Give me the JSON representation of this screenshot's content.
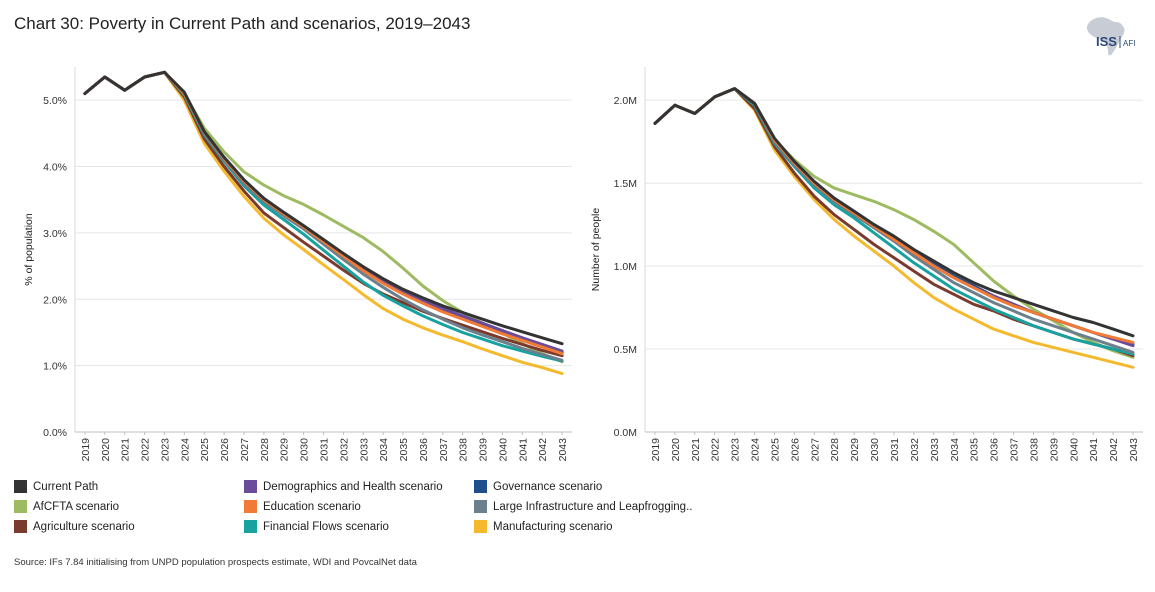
{
  "title": "Chart 30: Poverty in Current Path and scenarios, 2019–2043",
  "logo": {
    "main": "ISS",
    "sub": "AFI",
    "icon": "africa-map-icon"
  },
  "source": "Source: IFs 7.84 initialising from UNPD population prospects estimate, WDI and PovcalNet data",
  "legend": [
    {
      "name": "Current Path",
      "color": "#333333"
    },
    {
      "name": "Demographics and Health scenario",
      "color": "#6b4c9a"
    },
    {
      "name": "Governance scenario",
      "color": "#1f4e8c"
    },
    {
      "name": "AfCFTA scenario",
      "color": "#9dbb61"
    },
    {
      "name": "Education scenario",
      "color": "#f07a36"
    },
    {
      "name": "Large Infrastructure and Leapfrogging..",
      "color": "#6b7f8c"
    },
    {
      "name": "Agriculture scenario",
      "color": "#7b3a2e"
    },
    {
      "name": "Financial Flows scenario",
      "color": "#17a2a0"
    },
    {
      "name": "Manufacturing scenario",
      "color": "#f5b92e"
    }
  ],
  "chart_data": [
    {
      "type": "line",
      "ylabel": "% of population",
      "xlabel": "",
      "ylim": [
        0,
        5.5
      ],
      "yticks": [
        0,
        1,
        2,
        3,
        4,
        5
      ],
      "ytick_labels": [
        "0.0%",
        "1.0%",
        "2.0%",
        "3.0%",
        "4.0%",
        "5.0%"
      ],
      "x": [
        "2019",
        "2020",
        "2021",
        "2022",
        "2023",
        "2024",
        "2025",
        "2026",
        "2027",
        "2028",
        "2029",
        "2030",
        "2031",
        "2032",
        "2033",
        "2034",
        "2035",
        "2036",
        "2037",
        "2038",
        "2039",
        "2040",
        "2041",
        "2042",
        "2043"
      ],
      "grid": "horizontal",
      "series": [
        {
          "name": "AfCFTA scenario",
          "values": [
            5.1,
            5.35,
            5.15,
            5.35,
            5.42,
            5.1,
            4.58,
            4.22,
            3.92,
            3.72,
            3.56,
            3.43,
            3.27,
            3.1,
            2.93,
            2.72,
            2.47,
            2.2,
            1.98,
            1.8,
            1.64,
            1.49,
            1.33,
            1.18,
            1.06
          ]
        },
        {
          "name": "Manufacturing scenario",
          "values": [
            5.1,
            5.35,
            5.15,
            5.35,
            5.42,
            5.0,
            4.35,
            3.93,
            3.55,
            3.22,
            2.97,
            2.75,
            2.52,
            2.3,
            2.07,
            1.86,
            1.7,
            1.57,
            1.46,
            1.36,
            1.25,
            1.15,
            1.05,
            0.97,
            0.88
          ]
        },
        {
          "name": "Agriculture scenario",
          "values": [
            5.1,
            5.35,
            5.15,
            5.35,
            5.42,
            5.05,
            4.42,
            4.0,
            3.63,
            3.3,
            3.08,
            2.86,
            2.65,
            2.44,
            2.24,
            2.08,
            1.95,
            1.82,
            1.71,
            1.61,
            1.51,
            1.41,
            1.32,
            1.23,
            1.15
          ]
        },
        {
          "name": "Financial Flows scenario",
          "values": [
            5.1,
            5.35,
            5.15,
            5.35,
            5.42,
            5.08,
            4.48,
            4.08,
            3.71,
            3.42,
            3.2,
            2.98,
            2.74,
            2.5,
            2.26,
            2.06,
            1.9,
            1.75,
            1.62,
            1.5,
            1.4,
            1.3,
            1.22,
            1.14,
            1.07
          ]
        },
        {
          "name": "Large Infrastructure and Leapfrogging..",
          "values": [
            5.1,
            5.35,
            5.15,
            5.35,
            5.42,
            5.1,
            4.5,
            4.1,
            3.75,
            3.47,
            3.26,
            3.06,
            2.83,
            2.6,
            2.38,
            2.18,
            2.0,
            1.84,
            1.7,
            1.57,
            1.46,
            1.36,
            1.26,
            1.17,
            1.08
          ]
        },
        {
          "name": "Governance scenario",
          "values": [
            5.1,
            5.35,
            5.15,
            5.35,
            5.42,
            5.1,
            4.52,
            4.12,
            3.78,
            3.5,
            3.29,
            3.1,
            2.88,
            2.66,
            2.44,
            2.26,
            2.1,
            1.96,
            1.83,
            1.71,
            1.6,
            1.49,
            1.39,
            1.3,
            1.2
          ]
        },
        {
          "name": "Demographics and Health scenario",
          "values": [
            5.1,
            5.35,
            5.15,
            5.35,
            5.42,
            5.1,
            4.52,
            4.13,
            3.79,
            3.51,
            3.3,
            3.1,
            2.88,
            2.67,
            2.46,
            2.28,
            2.12,
            1.98,
            1.86,
            1.75,
            1.64,
            1.53,
            1.42,
            1.32,
            1.22
          ]
        },
        {
          "name": "Education scenario",
          "values": [
            5.1,
            5.35,
            5.15,
            5.35,
            5.42,
            5.1,
            4.52,
            4.12,
            3.78,
            3.5,
            3.29,
            3.09,
            2.87,
            2.65,
            2.43,
            2.24,
            2.08,
            1.94,
            1.81,
            1.7,
            1.59,
            1.48,
            1.38,
            1.28,
            1.18
          ]
        },
        {
          "name": "Current Path",
          "values": [
            5.1,
            5.35,
            5.15,
            5.35,
            5.42,
            5.12,
            4.53,
            4.14,
            3.8,
            3.52,
            3.31,
            3.11,
            2.9,
            2.69,
            2.49,
            2.31,
            2.15,
            2.02,
            1.9,
            1.8,
            1.7,
            1.6,
            1.51,
            1.42,
            1.33
          ]
        }
      ]
    },
    {
      "type": "line",
      "ylabel": "Number of people",
      "xlabel": "",
      "ylim": [
        0,
        2.2
      ],
      "yticks": [
        0,
        0.5,
        1.0,
        1.5,
        2.0
      ],
      "ytick_labels": [
        "0.0M",
        "0.5M",
        "1.0M",
        "1.5M",
        "2.0M"
      ],
      "x": [
        "2019",
        "2020",
        "2021",
        "2022",
        "2023",
        "2024",
        "2025",
        "2026",
        "2027",
        "2028",
        "2029",
        "2030",
        "2031",
        "2032",
        "2033",
        "2034",
        "2035",
        "2036",
        "2037",
        "2038",
        "2039",
        "2040",
        "2041",
        "2042",
        "2043"
      ],
      "grid": "horizontal",
      "series": [
        {
          "name": "AfCFTA scenario",
          "values": [
            1.86,
            1.97,
            1.92,
            2.02,
            2.07,
            1.97,
            1.76,
            1.64,
            1.54,
            1.47,
            1.43,
            1.39,
            1.34,
            1.28,
            1.21,
            1.13,
            1.02,
            0.91,
            0.82,
            0.74,
            0.67,
            0.6,
            0.54,
            0.49,
            0.45
          ]
        },
        {
          "name": "Manufacturing scenario",
          "values": [
            1.86,
            1.97,
            1.92,
            2.02,
            2.07,
            1.94,
            1.7,
            1.54,
            1.4,
            1.28,
            1.18,
            1.09,
            1.0,
            0.9,
            0.81,
            0.74,
            0.68,
            0.62,
            0.58,
            0.54,
            0.51,
            0.48,
            0.45,
            0.42,
            0.39
          ]
        },
        {
          "name": "Agriculture scenario",
          "values": [
            1.86,
            1.97,
            1.92,
            2.02,
            2.07,
            1.95,
            1.72,
            1.56,
            1.42,
            1.31,
            1.22,
            1.13,
            1.05,
            0.97,
            0.89,
            0.83,
            0.77,
            0.73,
            0.68,
            0.64,
            0.6,
            0.56,
            0.53,
            0.5,
            0.46
          ]
        },
        {
          "name": "Financial Flows scenario",
          "values": [
            1.86,
            1.97,
            1.92,
            2.02,
            2.07,
            1.97,
            1.74,
            1.6,
            1.47,
            1.37,
            1.29,
            1.2,
            1.11,
            1.02,
            0.94,
            0.86,
            0.8,
            0.74,
            0.69,
            0.64,
            0.6,
            0.56,
            0.53,
            0.5,
            0.47
          ]
        },
        {
          "name": "Large Infrastructure and Leapfrogging..",
          "values": [
            1.86,
            1.97,
            1.92,
            2.02,
            2.07,
            1.98,
            1.75,
            1.61,
            1.49,
            1.39,
            1.31,
            1.23,
            1.15,
            1.06,
            0.98,
            0.9,
            0.84,
            0.78,
            0.73,
            0.68,
            0.64,
            0.6,
            0.56,
            0.52,
            0.48
          ]
        },
        {
          "name": "Governance scenario",
          "values": [
            1.86,
            1.97,
            1.92,
            2.02,
            2.07,
            1.98,
            1.76,
            1.62,
            1.5,
            1.4,
            1.32,
            1.24,
            1.17,
            1.09,
            1.01,
            0.94,
            0.88,
            0.82,
            0.77,
            0.72,
            0.68,
            0.64,
            0.6,
            0.56,
            0.53
          ]
        },
        {
          "name": "Demographics and Health scenario",
          "values": [
            1.86,
            1.97,
            1.92,
            2.02,
            2.07,
            1.98,
            1.76,
            1.62,
            1.5,
            1.4,
            1.32,
            1.24,
            1.16,
            1.08,
            1.0,
            0.93,
            0.87,
            0.82,
            0.77,
            0.72,
            0.68,
            0.64,
            0.6,
            0.56,
            0.52
          ]
        },
        {
          "name": "Education scenario",
          "values": [
            1.86,
            1.97,
            1.92,
            2.02,
            2.07,
            1.98,
            1.76,
            1.62,
            1.5,
            1.4,
            1.32,
            1.24,
            1.16,
            1.08,
            1.0,
            0.93,
            0.87,
            0.81,
            0.76,
            0.72,
            0.68,
            0.64,
            0.6,
            0.57,
            0.54
          ]
        },
        {
          "name": "Current Path",
          "values": [
            1.86,
            1.97,
            1.92,
            2.02,
            2.07,
            1.98,
            1.77,
            1.63,
            1.51,
            1.41,
            1.33,
            1.25,
            1.18,
            1.1,
            1.03,
            0.96,
            0.9,
            0.85,
            0.81,
            0.77,
            0.73,
            0.69,
            0.66,
            0.62,
            0.58
          ]
        }
      ]
    }
  ]
}
